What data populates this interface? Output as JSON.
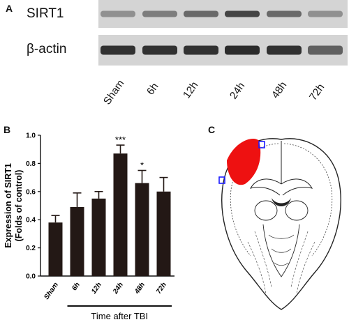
{
  "panel_a": {
    "letter": "A",
    "rows": [
      {
        "label": "SIRT1",
        "band_intensity": [
          0.35,
          0.45,
          0.55,
          0.75,
          0.55,
          0.35
        ]
      },
      {
        "label": "β-actin",
        "band_intensity": [
          0.85,
          0.85,
          0.85,
          0.88,
          0.85,
          0.6
        ]
      }
    ],
    "lanes": [
      "Sham",
      "6h",
      "12h",
      "24h",
      "48h",
      "72h"
    ]
  },
  "panel_b": {
    "letter": "B",
    "chart_data": {
      "type": "bar",
      "categories": [
        "Sham",
        "6h",
        "12h",
        "24h",
        "48h",
        "72h"
      ],
      "values": [
        0.38,
        0.49,
        0.55,
        0.87,
        0.66,
        0.6
      ],
      "errors": [
        0.05,
        0.1,
        0.05,
        0.06,
        0.09,
        0.1
      ],
      "significance": [
        "",
        "",
        "",
        "***",
        "*",
        ""
      ],
      "ylabel_line1": "Expression of SIRT1",
      "ylabel_line2": "(Folds of control)",
      "xlabel": "Time after TBI",
      "ylim": [
        0.0,
        1.0
      ],
      "yticks": [
        "0.0",
        "0.2",
        "0.4",
        "0.6",
        "0.8",
        "1.0"
      ],
      "bar_color": "#231815"
    }
  },
  "panel_c": {
    "letter": "C",
    "lesion_color": "#ee1111",
    "marker_color": "#1a1aff"
  }
}
